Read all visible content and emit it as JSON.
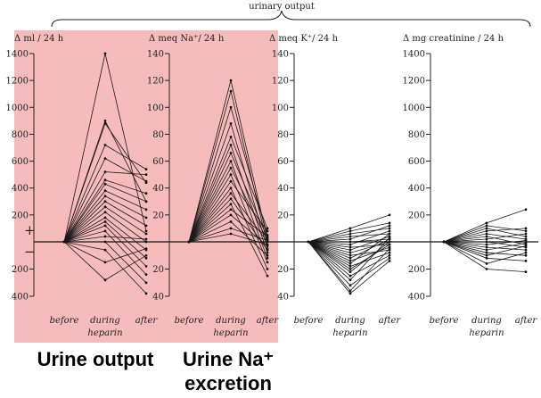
{
  "header": {
    "bracket_label": "urinary output"
  },
  "highlight_color": "#f5b7b7",
  "captions": {
    "urine_output": "Urine output",
    "urine_na_line1": "Urine Na⁺",
    "urine_na_line2": "excretion"
  },
  "plus_sign": "+",
  "minus_sign": "−",
  "chart_data": [
    {
      "type": "line",
      "ylabel": "Δ ml / 24 h",
      "y_ticks_up": [
        "1400",
        "1200",
        "1000",
        "800",
        "600",
        "400",
        "200"
      ],
      "y_ticks_down": [
        "200",
        "400"
      ],
      "ylim": [
        -400,
        1400
      ],
      "categories": [
        "before",
        "during",
        "after"
      ],
      "xlabel": "heparin",
      "series": [
        {
          "values": [
            0,
            1400,
            80
          ]
        },
        {
          "values": [
            0,
            900,
            300
          ]
        },
        {
          "values": [
            0,
            880,
            440
          ]
        },
        {
          "values": [
            0,
            720,
            540
          ]
        },
        {
          "values": [
            0,
            620,
            450
          ]
        },
        {
          "values": [
            0,
            520,
            500
          ]
        },
        {
          "values": [
            0,
            460,
            360
          ]
        },
        {
          "values": [
            0,
            430,
            300
          ]
        },
        {
          "values": [
            0,
            380,
            240
          ]
        },
        {
          "values": [
            0,
            340,
            180
          ]
        },
        {
          "values": [
            0,
            300,
            120
          ]
        },
        {
          "values": [
            0,
            260,
            60
          ]
        },
        {
          "values": [
            0,
            220,
            0
          ]
        },
        {
          "values": [
            0,
            180,
            -60
          ]
        },
        {
          "values": [
            0,
            150,
            -120
          ]
        },
        {
          "values": [
            0,
            120,
            -180
          ]
        },
        {
          "values": [
            0,
            80,
            -240
          ]
        },
        {
          "values": [
            0,
            40,
            20
          ]
        },
        {
          "values": [
            0,
            0,
            -300
          ]
        },
        {
          "values": [
            0,
            -60,
            -380
          ]
        },
        {
          "values": [
            0,
            -150,
            -50
          ]
        },
        {
          "values": [
            0,
            -280,
            -100
          ]
        }
      ]
    },
    {
      "type": "line",
      "ylabel": "Δ meq Na⁺/ 24 h",
      "y_ticks_up": [
        "140",
        "120",
        "100",
        "80",
        "60",
        "40",
        "20"
      ],
      "y_ticks_down": [
        "20",
        "40"
      ],
      "ylim": [
        -40,
        140
      ],
      "categories": [
        "before",
        "during",
        "after"
      ],
      "xlabel": "heparin",
      "series": [
        {
          "values": [
            0,
            120,
            2
          ]
        },
        {
          "values": [
            0,
            112,
            -2
          ]
        },
        {
          "values": [
            0,
            100,
            5
          ]
        },
        {
          "values": [
            0,
            88,
            -5
          ]
        },
        {
          "values": [
            0,
            78,
            10
          ]
        },
        {
          "values": [
            0,
            72,
            -8
          ]
        },
        {
          "values": [
            0,
            66,
            3
          ]
        },
        {
          "values": [
            0,
            60,
            -12
          ]
        },
        {
          "values": [
            0,
            55,
            1
          ]
        },
        {
          "values": [
            0,
            50,
            -15
          ]
        },
        {
          "values": [
            0,
            45,
            8
          ]
        },
        {
          "values": [
            0,
            40,
            -20
          ]
        },
        {
          "values": [
            0,
            36,
            0
          ]
        },
        {
          "values": [
            0,
            32,
            -6
          ]
        },
        {
          "values": [
            0,
            28,
            -25
          ]
        },
        {
          "values": [
            0,
            24,
            4
          ]
        },
        {
          "values": [
            0,
            20,
            -3
          ]
        },
        {
          "values": [
            0,
            15,
            -10
          ]
        },
        {
          "values": [
            0,
            10,
            1
          ]
        },
        {
          "values": [
            0,
            6,
            -2
          ]
        }
      ]
    },
    {
      "type": "line",
      "ylabel": "Δ meq K⁺/ 24 h",
      "y_ticks_up": [
        "140",
        "120",
        "100",
        "80",
        "60",
        "40",
        "20"
      ],
      "y_ticks_down": [
        "20",
        "40"
      ],
      "ylim": [
        -40,
        140
      ],
      "categories": [
        "before",
        "during",
        "after"
      ],
      "xlabel": "heparin",
      "series": [
        {
          "values": [
            0,
            10,
            20
          ]
        },
        {
          "values": [
            0,
            8,
            14
          ]
        },
        {
          "values": [
            0,
            6,
            10
          ]
        },
        {
          "values": [
            0,
            4,
            6
          ]
        },
        {
          "values": [
            0,
            2,
            12
          ]
        },
        {
          "values": [
            0,
            0,
            2
          ]
        },
        {
          "values": [
            0,
            -2,
            8
          ]
        },
        {
          "values": [
            0,
            -4,
            -2
          ]
        },
        {
          "values": [
            0,
            -6,
            4
          ]
        },
        {
          "values": [
            0,
            -8,
            0
          ]
        },
        {
          "values": [
            0,
            -10,
            -6
          ]
        },
        {
          "values": [
            0,
            -12,
            2
          ]
        },
        {
          "values": [
            0,
            -14,
            -4
          ]
        },
        {
          "values": [
            0,
            -16,
            6
          ]
        },
        {
          "values": [
            0,
            -18,
            -8
          ]
        },
        {
          "values": [
            0,
            -20,
            -2
          ]
        },
        {
          "values": [
            0,
            -22,
            0
          ]
        },
        {
          "values": [
            0,
            -25,
            -10
          ]
        },
        {
          "values": [
            0,
            -28,
            3
          ]
        },
        {
          "values": [
            0,
            -32,
            -12
          ]
        },
        {
          "values": [
            0,
            -36,
            -5
          ]
        },
        {
          "values": [
            0,
            -38,
            -14
          ]
        }
      ]
    },
    {
      "type": "line",
      "ylabel": "Δ mg creatinine / 24 h",
      "y_ticks_up": [
        "1400",
        "1200",
        "1000",
        "800",
        "600",
        "400",
        "200"
      ],
      "y_ticks_down": [
        "200",
        "400"
      ],
      "ylim": [
        -400,
        1400
      ],
      "categories": [
        "before",
        "during",
        "after"
      ],
      "xlabel": "heparin",
      "series": [
        {
          "values": [
            0,
            140,
            240
          ]
        },
        {
          "values": [
            0,
            120,
            80
          ]
        },
        {
          "values": [
            0,
            100,
            40
          ]
        },
        {
          "values": [
            0,
            80,
            100
          ]
        },
        {
          "values": [
            0,
            60,
            20
          ]
        },
        {
          "values": [
            0,
            40,
            -20
          ]
        },
        {
          "values": [
            0,
            20,
            60
          ]
        },
        {
          "values": [
            0,
            0,
            -40
          ]
        },
        {
          "values": [
            0,
            -20,
            10
          ]
        },
        {
          "values": [
            0,
            -40,
            -60
          ]
        },
        {
          "values": [
            0,
            -60,
            -10
          ]
        },
        {
          "values": [
            0,
            -80,
            -100
          ]
        },
        {
          "values": [
            0,
            -100,
            -30
          ]
        },
        {
          "values": [
            0,
            -120,
            -140
          ]
        },
        {
          "values": [
            0,
            -160,
            -80
          ]
        },
        {
          "values": [
            0,
            -200,
            -220
          ]
        }
      ]
    }
  ]
}
